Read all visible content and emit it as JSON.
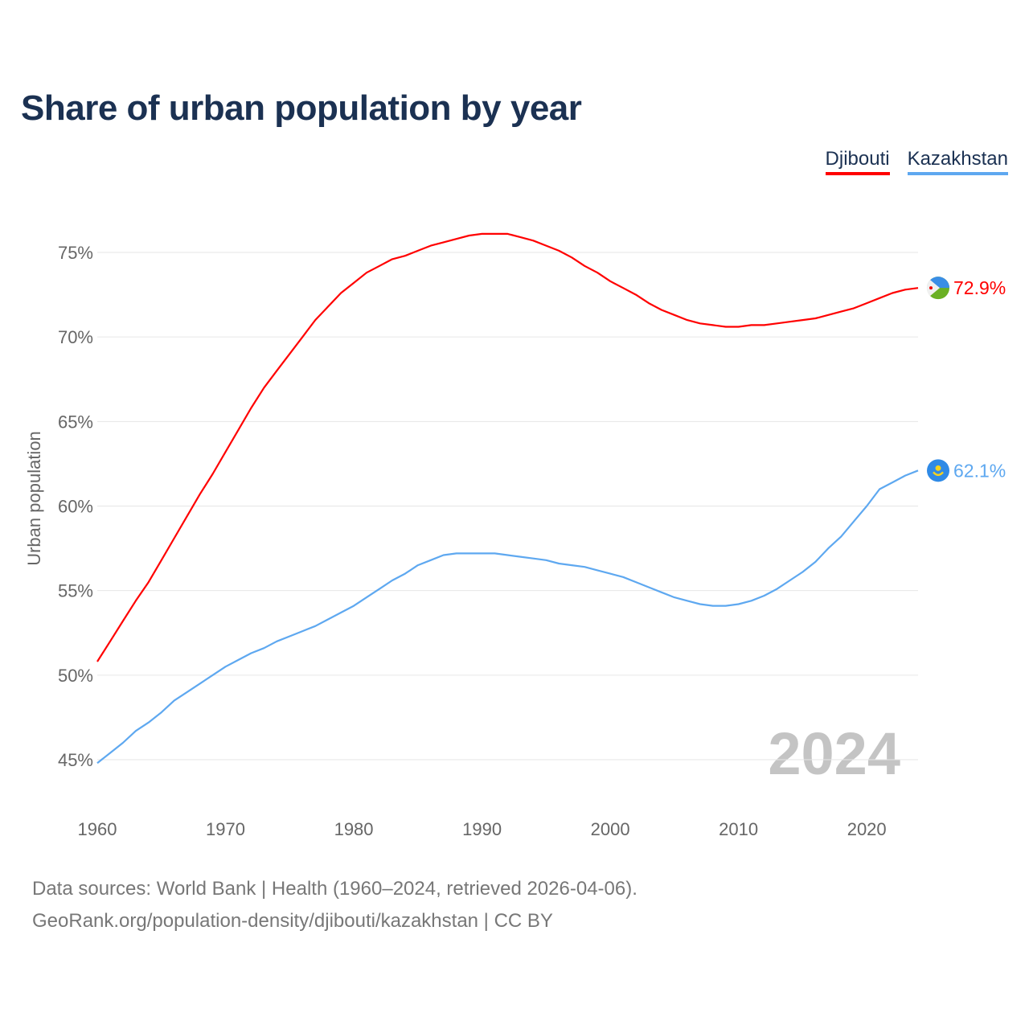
{
  "title": "Share of urban population by year",
  "legend": [
    {
      "label": "Djibouti",
      "color": "#ff0000"
    },
    {
      "label": "Kazakhstan",
      "color": "#5ea8f0"
    }
  ],
  "year_watermark": "2024",
  "footer": {
    "line1": "Data sources: World Bank | Health (1960–2024, retrieved 2026-04-06).",
    "line2": "GeoRank.org/population-density/djibouti/kazakhstan | CC BY"
  },
  "chart_data": {
    "type": "line",
    "title": "Share of urban population by year",
    "xlabel": "",
    "ylabel": "Urban population",
    "xlim": [
      1960,
      2024
    ],
    "ylim": [
      43,
      77.5
    ],
    "x_ticks": [
      1960,
      1970,
      1980,
      1990,
      2000,
      2010,
      2020
    ],
    "y_ticks": [
      45,
      50,
      55,
      60,
      65,
      70,
      75
    ],
    "y_tick_labels": [
      "45%",
      "50%",
      "55%",
      "60%",
      "65%",
      "70%",
      "75%"
    ],
    "grid": true,
    "legend_position": "top-right",
    "x_start": 1960,
    "series": [
      {
        "name": "Djibouti",
        "color": "#ff0000",
        "end_label": "72.9%",
        "flag": "djibouti-flag",
        "values": [
          50.8,
          52.0,
          53.2,
          54.4,
          55.5,
          56.8,
          58.1,
          59.4,
          60.7,
          61.9,
          63.2,
          64.5,
          65.8,
          67.0,
          68.0,
          69.0,
          70.0,
          71.0,
          71.8,
          72.6,
          73.2,
          73.8,
          74.2,
          74.6,
          74.8,
          75.1,
          75.4,
          75.6,
          75.8,
          76.0,
          76.1,
          76.1,
          76.1,
          75.9,
          75.7,
          75.4,
          75.1,
          74.7,
          74.2,
          73.8,
          73.3,
          72.9,
          72.5,
          72.0,
          71.6,
          71.3,
          71.0,
          70.8,
          70.7,
          70.6,
          70.6,
          70.7,
          70.7,
          70.8,
          70.9,
          71.0,
          71.1,
          71.3,
          71.5,
          71.7,
          72.0,
          72.3,
          72.6,
          72.8,
          72.9
        ]
      },
      {
        "name": "Kazakhstan",
        "color": "#5ea8f0",
        "end_label": "62.1%",
        "flag": "kazakhstan-flag",
        "values": [
          44.8,
          45.4,
          46.0,
          46.7,
          47.2,
          47.8,
          48.5,
          49.0,
          49.5,
          50.0,
          50.5,
          50.9,
          51.3,
          51.6,
          52.0,
          52.3,
          52.6,
          52.9,
          53.3,
          53.7,
          54.1,
          54.6,
          55.1,
          55.6,
          56.0,
          56.5,
          56.8,
          57.1,
          57.2,
          57.2,
          57.2,
          57.2,
          57.1,
          57.0,
          56.9,
          56.8,
          56.6,
          56.5,
          56.4,
          56.2,
          56.0,
          55.8,
          55.5,
          55.2,
          54.9,
          54.6,
          54.4,
          54.2,
          54.1,
          54.1,
          54.2,
          54.4,
          54.7,
          55.1,
          55.6,
          56.1,
          56.7,
          57.5,
          58.2,
          59.1,
          60.0,
          61.0,
          61.4,
          61.8,
          62.1
        ]
      }
    ]
  }
}
